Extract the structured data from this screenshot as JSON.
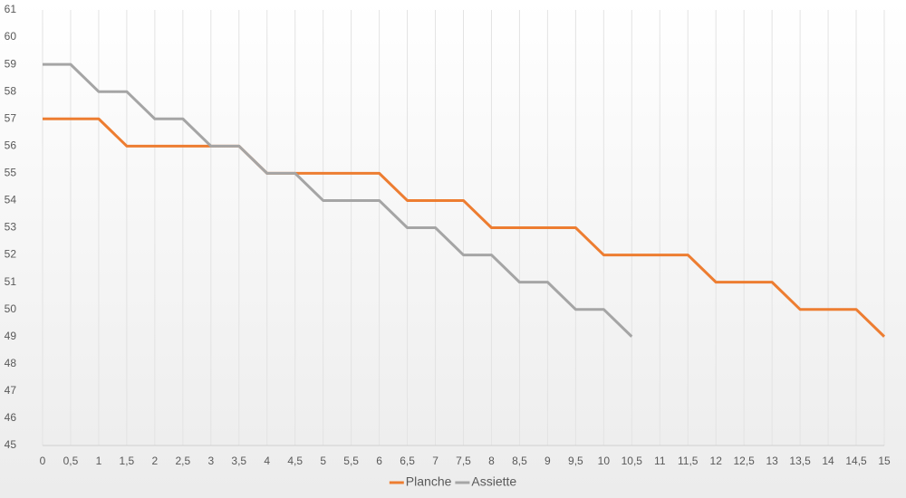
{
  "chart_data": {
    "type": "line",
    "categories": [
      "0",
      "0,5",
      "1",
      "1,5",
      "2",
      "2,5",
      "3",
      "3,5",
      "4",
      "4,5",
      "5",
      "5,5",
      "6",
      "6,5",
      "7",
      "7,5",
      "8",
      "8,5",
      "9",
      "9,5",
      "10",
      "10,5",
      "11",
      "11,5",
      "12",
      "12,5",
      "13",
      "13,5",
      "14",
      "14,5",
      "15"
    ],
    "series": [
      {
        "name": "Planche",
        "color": "#ed7d31",
        "values": [
          57,
          57,
          57,
          56,
          56,
          56,
          56,
          56,
          55,
          55,
          55,
          55,
          55,
          54,
          54,
          54,
          53,
          53,
          53,
          53,
          52,
          52,
          52,
          52,
          51,
          51,
          51,
          50,
          50,
          50,
          49
        ]
      },
      {
        "name": "Assiette",
        "color": "#a5a5a5",
        "values": [
          59,
          59,
          58,
          58,
          57,
          57,
          56,
          56,
          55,
          55,
          54,
          54,
          54,
          53,
          53,
          52,
          52,
          51,
          51,
          50,
          50,
          49,
          null,
          null,
          null,
          null,
          null,
          null,
          null,
          null,
          null
        ]
      }
    ],
    "ylim": [
      45,
      61
    ],
    "yticks": [
      45,
      46,
      47,
      48,
      49,
      50,
      51,
      52,
      53,
      54,
      55,
      56,
      57,
      58,
      59,
      60,
      61
    ],
    "xgrid": true,
    "legend": "bottom"
  }
}
